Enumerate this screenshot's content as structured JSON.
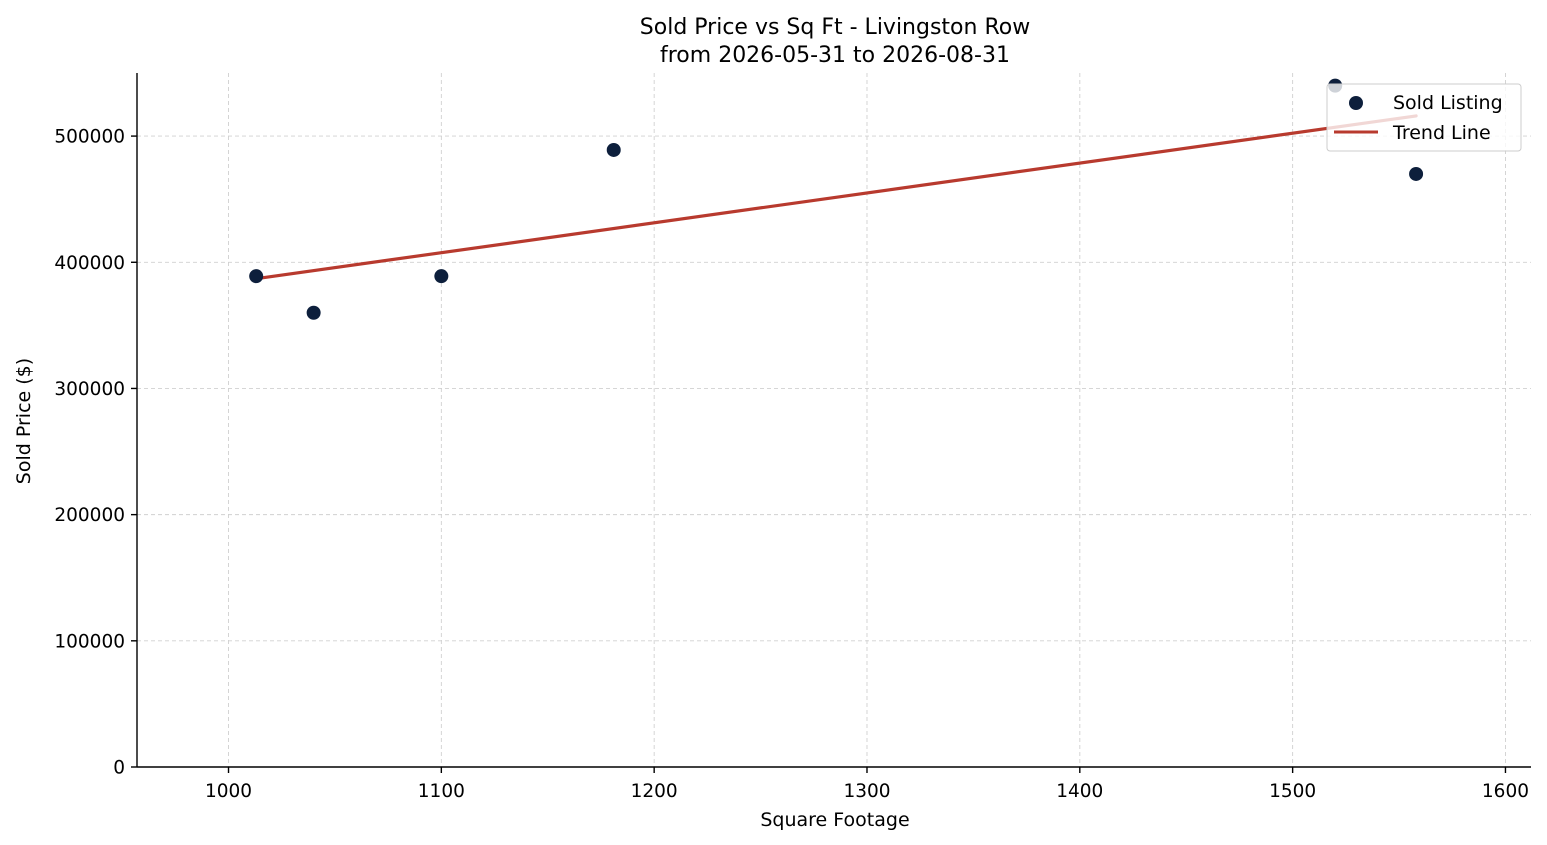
{
  "chart_data": {
    "type": "scatter",
    "title_line1": "Sold Price vs Sq Ft - Livingston Row",
    "title_line2": "from 2026-05-31 to 2026-08-31",
    "xlabel": "Square Footage",
    "ylabel": "Sold Price ($)",
    "xlim": [
      957,
      1612
    ],
    "ylim": [
      0,
      550000
    ],
    "xticks": [
      1000,
      1100,
      1200,
      1300,
      1400,
      1500,
      1600
    ],
    "yticks": [
      0,
      100000,
      200000,
      300000,
      400000,
      500000
    ],
    "grid": true,
    "legend_position": "top-right",
    "series": [
      {
        "name": "Sold Listing",
        "kind": "scatter",
        "color": "#0d1f3c",
        "points": [
          {
            "x": 1013,
            "y": 389000
          },
          {
            "x": 1040,
            "y": 360000
          },
          {
            "x": 1100,
            "y": 389000
          },
          {
            "x": 1181,
            "y": 489000
          },
          {
            "x": 1520,
            "y": 540000
          },
          {
            "x": 1558,
            "y": 470000
          }
        ]
      },
      {
        "name": "Trend Line",
        "kind": "line",
        "color": "#b83a2e",
        "points": [
          {
            "x": 1013,
            "y": 387000
          },
          {
            "x": 1558,
            "y": 516000
          }
        ]
      }
    ]
  }
}
